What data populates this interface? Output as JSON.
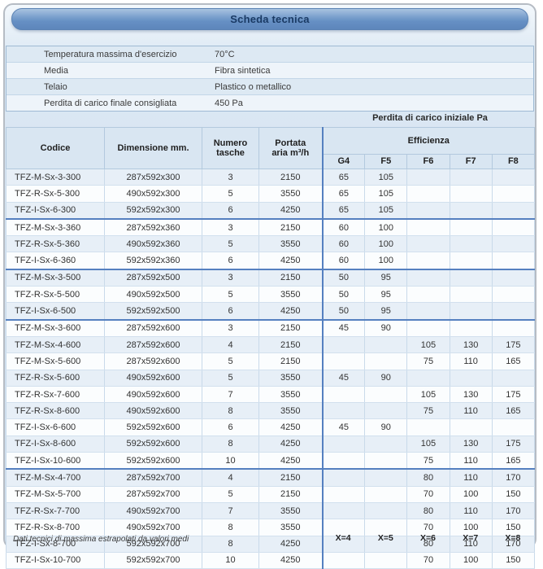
{
  "title": "Scheda tecnica",
  "specs": {
    "rows": [
      {
        "label": "Temperatura massima d'esercizio",
        "value": "70°C"
      },
      {
        "label": "Media",
        "value": "Fibra sintetica"
      },
      {
        "label": "Telaio",
        "value": "Plastico o metallico"
      },
      {
        "label": "Perdita di carico finale consigliata",
        "value": "450 Pa"
      }
    ]
  },
  "table": {
    "pressure_header": "Perdita di carico iniziale Pa",
    "headers": {
      "codice": "Codice",
      "dimensione": "Dimensione mm.",
      "numero_line1": "Numero",
      "numero_line2": "tasche",
      "portata_line1": "Portata",
      "portata_line2": "aria m³/h",
      "efficienza": "Efficienza",
      "classes": [
        "G4",
        "F5",
        "F6",
        "F7",
        "F8"
      ]
    },
    "group_start_indexes": [
      3,
      6,
      9,
      18
    ],
    "rows": [
      {
        "codice": "TFZ-M-Sx-3-300",
        "dimensione": "287x592x300",
        "tasche": "3",
        "portata": "2150",
        "g4": "65",
        "f5": "105",
        "f6": "",
        "f7": "",
        "f8": ""
      },
      {
        "codice": "TFZ-R-Sx-5-300",
        "dimensione": "490x592x300",
        "tasche": "5",
        "portata": "3550",
        "g4": "65",
        "f5": "105",
        "f6": "",
        "f7": "",
        "f8": ""
      },
      {
        "codice": "TFZ-I-Sx-6-300",
        "dimensione": "592x592x300",
        "tasche": "6",
        "portata": "4250",
        "g4": "65",
        "f5": "105",
        "f6": "",
        "f7": "",
        "f8": ""
      },
      {
        "codice": "TFZ-M-Sx-3-360",
        "dimensione": "287x592x360",
        "tasche": "3",
        "portata": "2150",
        "g4": "60",
        "f5": "100",
        "f6": "",
        "f7": "",
        "f8": ""
      },
      {
        "codice": "TFZ-R-Sx-5-360",
        "dimensione": "490x592x360",
        "tasche": "5",
        "portata": "3550",
        "g4": "60",
        "f5": "100",
        "f6": "",
        "f7": "",
        "f8": ""
      },
      {
        "codice": "TFZ-I-Sx-6-360",
        "dimensione": "592x592x360",
        "tasche": "6",
        "portata": "4250",
        "g4": "60",
        "f5": "100",
        "f6": "",
        "f7": "",
        "f8": ""
      },
      {
        "codice": "TFZ-M-Sx-3-500",
        "dimensione": "287x592x500",
        "tasche": "3",
        "portata": "2150",
        "g4": "50",
        "f5": "95",
        "f6": "",
        "f7": "",
        "f8": ""
      },
      {
        "codice": "TFZ-R-Sx-5-500",
        "dimensione": "490x592x500",
        "tasche": "5",
        "portata": "3550",
        "g4": "50",
        "f5": "95",
        "f6": "",
        "f7": "",
        "f8": ""
      },
      {
        "codice": "TFZ-I-Sx-6-500",
        "dimensione": "592x592x500",
        "tasche": "6",
        "portata": "4250",
        "g4": "50",
        "f5": "95",
        "f6": "",
        "f7": "",
        "f8": ""
      },
      {
        "codice": "TFZ-M-Sx-3-600",
        "dimensione": "287x592x600",
        "tasche": "3",
        "portata": "2150",
        "g4": "45",
        "f5": "90",
        "f6": "",
        "f7": "",
        "f8": ""
      },
      {
        "codice": "TFZ-M-Sx-4-600",
        "dimensione": "287x592x600",
        "tasche": "4",
        "portata": "2150",
        "g4": "",
        "f5": "",
        "f6": "105",
        "f7": "130",
        "f8": "175"
      },
      {
        "codice": "TFZ-M-Sx-5-600",
        "dimensione": "287x592x600",
        "tasche": "5",
        "portata": "2150",
        "g4": "",
        "f5": "",
        "f6": "75",
        "f7": "110",
        "f8": "165"
      },
      {
        "codice": "TFZ-R-Sx-5-600",
        "dimensione": "490x592x600",
        "tasche": "5",
        "portata": "3550",
        "g4": "45",
        "f5": "90",
        "f6": "",
        "f7": "",
        "f8": ""
      },
      {
        "codice": "TFZ-R-Sx-7-600",
        "dimensione": "490x592x600",
        "tasche": "7",
        "portata": "3550",
        "g4": "",
        "f5": "",
        "f6": "105",
        "f7": "130",
        "f8": "175"
      },
      {
        "codice": "TFZ-R-Sx-8-600",
        "dimensione": "490x592x600",
        "tasche": "8",
        "portata": "3550",
        "g4": "",
        "f5": "",
        "f6": "75",
        "f7": "110",
        "f8": "165"
      },
      {
        "codice": "TFZ-I-Sx-6-600",
        "dimensione": "592x592x600",
        "tasche": "6",
        "portata": "4250",
        "g4": "45",
        "f5": "90",
        "f6": "",
        "f7": "",
        "f8": ""
      },
      {
        "codice": "TFZ-I-Sx-8-600",
        "dimensione": "592x592x600",
        "tasche": "8",
        "portata": "4250",
        "g4": "",
        "f5": "",
        "f6": "105",
        "f7": "130",
        "f8": "175"
      },
      {
        "codice": "TFZ-I-Sx-10-600",
        "dimensione": "592x592x600",
        "tasche": "10",
        "portata": "4250",
        "g4": "",
        "f5": "",
        "f6": "75",
        "f7": "110",
        "f8": "165"
      },
      {
        "codice": "TFZ-M-Sx-4-700",
        "dimensione": "287x592x700",
        "tasche": "4",
        "portata": "2150",
        "g4": "",
        "f5": "",
        "f6": "80",
        "f7": "110",
        "f8": "170"
      },
      {
        "codice": "TFZ-M-Sx-5-700",
        "dimensione": "287x592x700",
        "tasche": "5",
        "portata": "2150",
        "g4": "",
        "f5": "",
        "f6": "70",
        "f7": "100",
        "f8": "150"
      },
      {
        "codice": "TFZ-R-Sx-7-700",
        "dimensione": "490x592x700",
        "tasche": "7",
        "portata": "3550",
        "g4": "",
        "f5": "",
        "f6": "80",
        "f7": "110",
        "f8": "170"
      },
      {
        "codice": "TFZ-R-Sx-8-700",
        "dimensione": "490x592x700",
        "tasche": "8",
        "portata": "3550",
        "g4": "",
        "f5": "",
        "f6": "70",
        "f7": "100",
        "f8": "150"
      },
      {
        "codice": "TFZ-I-Sx-8-700",
        "dimensione": "592x592x700",
        "tasche": "8",
        "portata": "4250",
        "g4": "",
        "f5": "",
        "f6": "80",
        "f7": "110",
        "f8": "170"
      },
      {
        "codice": "TFZ-I-Sx-10-700",
        "dimensione": "592x592x700",
        "tasche": "10",
        "portata": "4250",
        "g4": "",
        "f5": "",
        "f6": "70",
        "f7": "100",
        "f8": "150"
      }
    ]
  },
  "footer": {
    "note": "Dati tecnici di massima estrapolati da valori medi",
    "x_labels": [
      "X=4",
      "X=5",
      "X=6",
      "X=7",
      "X=8"
    ]
  },
  "colors": {
    "accent_blue": "#5580c0",
    "title_bar_blue": "#6690c4",
    "panel_bg": "#d5e3f1",
    "row_tint": "#e7eff7"
  }
}
